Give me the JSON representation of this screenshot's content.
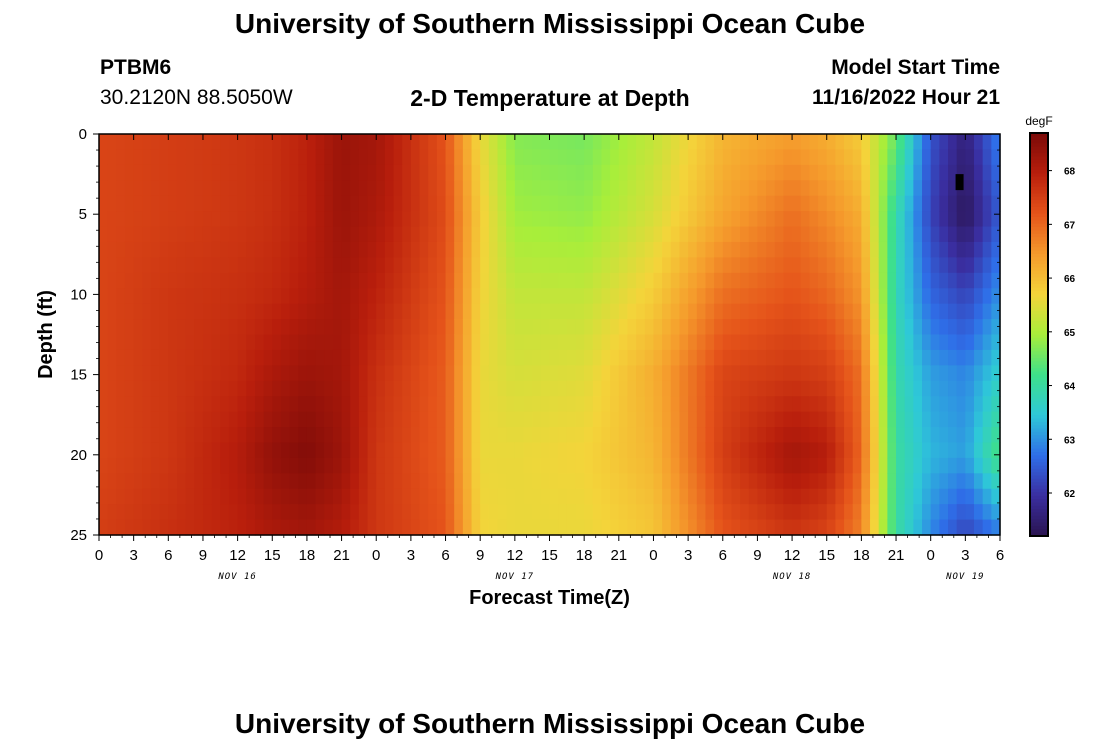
{
  "header": {
    "title": "University of Southern Mississippi Ocean Cube",
    "station_id": "PTBM6",
    "station_coords": "30.2120N  88.5050W",
    "chart_title": "2-D Temperature at Depth",
    "model_label": "Model Start Time",
    "model_time": "11/16/2022 Hour 21"
  },
  "footer": {
    "title": "University of Southern Mississippi Ocean Cube"
  },
  "chart_data": {
    "type": "heatmap",
    "title": "2-D Temperature at Depth",
    "xlabel": "Forecast Time(Z)",
    "ylabel": "Depth (ft)",
    "x_range_hours": [
      0,
      78
    ],
    "x_tick_labels": [
      "0",
      "3",
      "6",
      "9",
      "12",
      "15",
      "18",
      "21",
      "0",
      "3",
      "6",
      "9",
      "12",
      "15",
      "18",
      "21",
      "0",
      "3",
      "6",
      "9",
      "12",
      "15",
      "18",
      "21",
      "0",
      "3",
      "6"
    ],
    "date_labels": [
      {
        "text": "NOV 16",
        "hour": 12
      },
      {
        "text": "NOV 17",
        "hour": 36
      },
      {
        "text": "NOV 18",
        "hour": 60
      },
      {
        "text": "NOV 19",
        "hour": 75
      }
    ],
    "y_range": [
      0,
      25
    ],
    "y_ticks": [
      0,
      5,
      10,
      15,
      20,
      25
    ],
    "y_inverted": true,
    "colorbar": {
      "unit": "degF",
      "min": 61.2,
      "max": 68.7,
      "ticks": [
        62,
        63,
        64,
        65,
        66,
        67,
        68
      ],
      "colors": [
        "#2a1450",
        "#3a2ea0",
        "#2f6ee8",
        "#2ec8d8",
        "#3ee08a",
        "#a8ee3a",
        "#f4d43a",
        "#f59a2c",
        "#e5531a",
        "#b81e0c",
        "#7a0a08"
      ]
    },
    "temperature_grid": {
      "description": "Temperature (degF) by forecast hour (rows) and depth (columns)",
      "hours": [
        0,
        6,
        12,
        15,
        18,
        21,
        24,
        30,
        33,
        36,
        42,
        48,
        54,
        60,
        63,
        66,
        69,
        72,
        75,
        78
      ],
      "depths": [
        0,
        5,
        10,
        15,
        20,
        25
      ],
      "values": [
        [
          67.4,
          67.4,
          67.4,
          67.4,
          67.4,
          67.5
        ],
        [
          67.5,
          67.5,
          67.6,
          67.6,
          67.6,
          67.7
        ],
        [
          67.6,
          67.6,
          67.7,
          67.8,
          68.0,
          67.9
        ],
        [
          67.7,
          67.7,
          67.8,
          68.1,
          68.4,
          68.1
        ],
        [
          67.9,
          67.9,
          68.0,
          68.3,
          68.6,
          68.2
        ],
        [
          68.3,
          68.3,
          68.2,
          68.2,
          68.3,
          68.0
        ],
        [
          68.2,
          68.1,
          67.9,
          67.7,
          67.6,
          67.6
        ],
        [
          67.2,
          67.3,
          67.2,
          67.1,
          67.1,
          67.2
        ],
        [
          65.6,
          65.8,
          65.7,
          65.6,
          65.6,
          65.7
        ],
        [
          64.7,
          64.9,
          65.2,
          65.4,
          65.6,
          65.6
        ],
        [
          64.6,
          64.8,
          65.2,
          65.5,
          65.7,
          65.6
        ],
        [
          65.2,
          65.4,
          65.8,
          66.2,
          66.1,
          65.9
        ],
        [
          66.1,
          66.3,
          66.9,
          67.4,
          67.5,
          67.2
        ],
        [
          66.4,
          66.9,
          67.2,
          67.6,
          68.2,
          67.6
        ],
        [
          66.2,
          66.6,
          67.0,
          67.5,
          68.0,
          67.4
        ],
        [
          65.8,
          66.2,
          66.5,
          66.9,
          67.0,
          66.7
        ],
        [
          64.5,
          63.9,
          63.8,
          63.9,
          64.0,
          64.0
        ],
        [
          62.4,
          62.2,
          62.6,
          63.1,
          63.3,
          62.9
        ],
        [
          61.6,
          61.3,
          62.2,
          62.9,
          63.1,
          62.2
        ],
        [
          62.9,
          62.5,
          63.0,
          63.6,
          64.3,
          62.8
        ]
      ]
    },
    "marker": {
      "hour": 74.5,
      "depth": 3,
      "color": "#000000"
    }
  }
}
